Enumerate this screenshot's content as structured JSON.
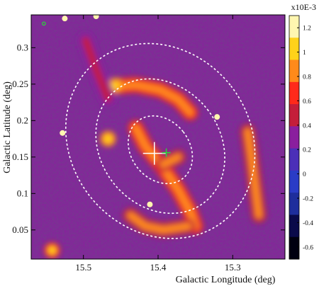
{
  "chart_data": {
    "type": "heatmap",
    "title": "",
    "xlabel": "Galactic Longitude (deg)",
    "ylabel": "Galactic Latitude (deg)",
    "xlim": [
      15.57,
      15.23
    ],
    "ylim": [
      0.01,
      0.345
    ],
    "x_ticks": [
      15.5,
      15.4,
      15.3
    ],
    "x_tick_labels": [
      "15.5",
      "15.4",
      "15.3"
    ],
    "y_ticks": [
      0.05,
      0.1,
      0.15,
      0.2,
      0.25,
      0.3
    ],
    "y_tick_labels": [
      "0.05",
      "0.1",
      "0.15",
      "0.2",
      "0.25",
      "0.3"
    ],
    "colorbar": {
      "unit_label": "x10E-3",
      "range": [
        -0.7,
        1.3
      ],
      "ticks": [
        1.2,
        1.0,
        0.8,
        0.6,
        0.4,
        0.2,
        0.0,
        -0.2,
        -0.4,
        -0.6
      ],
      "tick_labels": [
        "1.2",
        "1",
        "0.8",
        "0.6",
        "0.4",
        "0.2",
        "0",
        "-0.2",
        "-0.4",
        "-0.6"
      ],
      "colors": [
        "#000010",
        "#0a0a4a",
        "#1e2e9c",
        "#2a3cc6",
        "#4b2fb8",
        "#8a1f9e",
        "#c41e3a",
        "#ff2a1a",
        "#ff8a1a",
        "#ffd21a",
        "#fff6b0"
      ]
    },
    "ellipses": [
      {
        "center": [
          15.397,
          0.172
        ],
        "semi_axes_deg": [
          0.12,
          0.14
        ],
        "rotation_deg": -38
      },
      {
        "center": [
          15.397,
          0.165
        ],
        "semi_axes_deg": [
          0.08,
          0.098
        ],
        "rotation_deg": -38
      },
      {
        "center": [
          15.397,
          0.16
        ],
        "semi_axes_deg": [
          0.039,
          0.05
        ],
        "rotation_deg": -38
      }
    ],
    "markers": [
      {
        "kind": "plus",
        "x": 15.405,
        "y": 0.155,
        "color": "#ffffff"
      },
      {
        "kind": "plus",
        "x": 15.389,
        "y": 0.156,
        "color": "#2ad33a"
      },
      {
        "kind": "circle",
        "x": 15.553,
        "y": 0.333,
        "color": "#2ad33a"
      }
    ],
    "emission": {
      "background_level": 0.33,
      "features": [
        {
          "name": "arc",
          "points": [
            [
              15.457,
              0.247
            ],
            [
              15.43,
              0.249
            ],
            [
              15.397,
              0.242
            ],
            [
              15.373,
              0.229
            ],
            [
              15.357,
              0.211
            ]
          ],
          "level": 0.9
        },
        {
          "name": "ridge",
          "points": [
            [
              15.43,
              0.19
            ],
            [
              15.417,
              0.165
            ],
            [
              15.393,
              0.135
            ],
            [
              15.373,
              0.105
            ],
            [
              15.357,
              0.075
            ],
            [
              15.35,
              0.055
            ]
          ],
          "level": 0.95
        },
        {
          "name": "blob",
          "points": [
            [
              15.457,
              0.248
            ]
          ],
          "level": 1.15
        },
        {
          "name": "blob",
          "points": [
            [
              15.467,
              0.175
            ]
          ],
          "level": 1.05
        },
        {
          "name": "blob",
          "points": [
            [
              15.393,
              0.14
            ],
            [
              15.373,
              0.15
            ]
          ],
          "level": 0.85
        },
        {
          "name": "east-ridge",
          "points": [
            [
              15.28,
              0.185
            ],
            [
              15.275,
              0.15
            ],
            [
              15.27,
              0.11
            ],
            [
              15.265,
              0.07
            ]
          ],
          "level": 0.8
        },
        {
          "name": "south-arc",
          "points": [
            [
              15.437,
              0.07
            ],
            [
              15.417,
              0.055
            ],
            [
              15.393,
              0.05
            ],
            [
              15.36,
              0.055
            ]
          ],
          "level": 0.8
        },
        {
          "name": "corner",
          "points": [
            [
              15.542,
              0.022
            ]
          ],
          "level": 1.0
        },
        {
          "name": "north-streak",
          "points": [
            [
              15.497,
              0.31
            ],
            [
              15.483,
              0.27
            ],
            [
              15.467,
              0.23
            ]
          ],
          "level": 0.55
        }
      ],
      "point_sources": [
        {
          "x": 15.483,
          "y": 0.343,
          "level": 1.3
        },
        {
          "x": 15.525,
          "y": 0.34,
          "level": 1.3
        },
        {
          "x": 15.321,
          "y": 0.205,
          "level": 1.3
        },
        {
          "x": 15.528,
          "y": 0.183,
          "level": 1.3
        },
        {
          "x": 15.411,
          "y": 0.085,
          "level": 1.3
        }
      ]
    }
  }
}
